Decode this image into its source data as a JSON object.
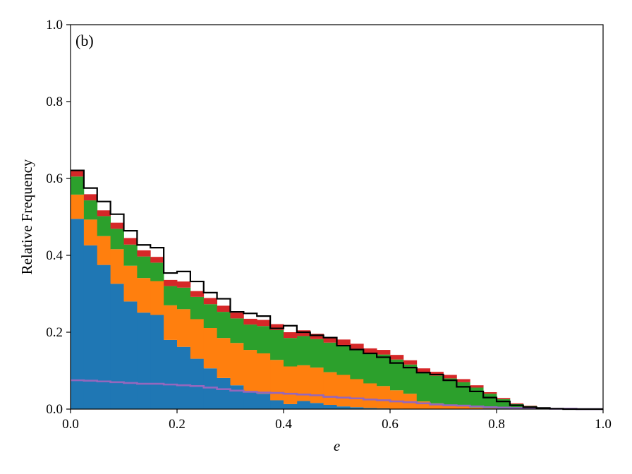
{
  "chart_data": {
    "type": "histogram",
    "annotation": "(b)",
    "xlabel": "e",
    "ylabel": "Relative Frequency",
    "xlim": [
      0.0,
      1.0
    ],
    "ylim": [
      0.0,
      1.0
    ],
    "xticks": [
      0.0,
      0.2,
      0.4,
      0.6,
      0.8,
      1.0
    ],
    "yticks": [
      0.0,
      0.2,
      0.4,
      0.6,
      0.8,
      1.0
    ],
    "xtick_labels": [
      "0.0",
      "0.2",
      "0.4",
      "0.6",
      "0.8",
      "1.0"
    ],
    "ytick_labels": [
      "0.0",
      "0.2",
      "0.4",
      "0.6",
      "0.8",
      "1.0"
    ],
    "bin_width": 0.025,
    "bins_start": 0.0,
    "series": [
      {
        "color": "#1f77b4",
        "stacked": true,
        "values": [
          0.495,
          0.426,
          0.375,
          0.326,
          0.28,
          0.251,
          0.245,
          0.18,
          0.162,
          0.131,
          0.106,
          0.081,
          0.062,
          0.047,
          0.04,
          0.023,
          0.013,
          0.021,
          0.016,
          0.011,
          0.007,
          0.005,
          0.003,
          0.002,
          0.001,
          0.0,
          0.0,
          0.0,
          0.0,
          0.0,
          0.0,
          0.0,
          0.0,
          0.0,
          0.0,
          0.0,
          0.0,
          0.0,
          0.0,
          0.0
        ]
      },
      {
        "color": "#ff7f0e",
        "stacked": true,
        "values": [
          0.063,
          0.067,
          0.075,
          0.09,
          0.093,
          0.09,
          0.088,
          0.09,
          0.098,
          0.103,
          0.105,
          0.104,
          0.11,
          0.107,
          0.105,
          0.105,
          0.098,
          0.093,
          0.092,
          0.085,
          0.082,
          0.073,
          0.064,
          0.058,
          0.048,
          0.04,
          0.02,
          0.015,
          0.01,
          0.008,
          0.004,
          0.002,
          0.001,
          0.001,
          0.0,
          0.0,
          0.0,
          0.0,
          0.0,
          0.0
        ]
      },
      {
        "color": "#2ca02c",
        "stacked": true,
        "values": [
          0.047,
          0.05,
          0.052,
          0.053,
          0.055,
          0.056,
          0.048,
          0.05,
          0.056,
          0.058,
          0.062,
          0.068,
          0.064,
          0.066,
          0.071,
          0.078,
          0.074,
          0.076,
          0.074,
          0.077,
          0.078,
          0.079,
          0.078,
          0.082,
          0.08,
          0.076,
          0.075,
          0.072,
          0.07,
          0.062,
          0.052,
          0.038,
          0.025,
          0.012,
          0.008,
          0.003,
          0.002,
          0.001,
          0.001,
          0.0
        ]
      },
      {
        "color": "#d62728",
        "stacked": true,
        "values": [
          0.016,
          0.016,
          0.015,
          0.016,
          0.017,
          0.016,
          0.015,
          0.016,
          0.016,
          0.015,
          0.016,
          0.016,
          0.015,
          0.015,
          0.016,
          0.015,
          0.015,
          0.015,
          0.014,
          0.014,
          0.014,
          0.013,
          0.013,
          0.012,
          0.012,
          0.011,
          0.011,
          0.01,
          0.009,
          0.008,
          0.006,
          0.004,
          0.003,
          0.002,
          0.001,
          0.0,
          0.0,
          0.0,
          0.0,
          0.0
        ]
      },
      {
        "color": "#9467bd",
        "stacked": false,
        "style": "step-line",
        "values": [
          0.075,
          0.074,
          0.072,
          0.07,
          0.068,
          0.066,
          0.066,
          0.064,
          0.062,
          0.06,
          0.056,
          0.052,
          0.048,
          0.045,
          0.043,
          0.042,
          0.04,
          0.038,
          0.036,
          0.032,
          0.03,
          0.028,
          0.025,
          0.023,
          0.02,
          0.018,
          0.015,
          0.012,
          0.01,
          0.009,
          0.007,
          0.005,
          0.004,
          0.003,
          0.002,
          0.002,
          0.001,
          0.001,
          0.0,
          0.0
        ]
      },
      {
        "color": "#000000",
        "stacked": false,
        "style": "step-line",
        "values": [
          0.621,
          0.575,
          0.54,
          0.507,
          0.464,
          0.427,
          0.42,
          0.354,
          0.358,
          0.332,
          0.303,
          0.287,
          0.253,
          0.249,
          0.242,
          0.21,
          0.217,
          0.2,
          0.192,
          0.186,
          0.165,
          0.155,
          0.145,
          0.135,
          0.12,
          0.108,
          0.095,
          0.09,
          0.075,
          0.058,
          0.046,
          0.03,
          0.02,
          0.01,
          0.005,
          0.003,
          0.001,
          0.0,
          0.0,
          0.0
        ]
      }
    ]
  }
}
